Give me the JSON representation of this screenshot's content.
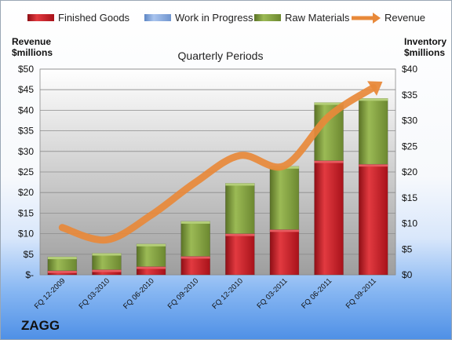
{
  "brand": "ZAGG",
  "chart_data": {
    "type": "bar",
    "stacked": true,
    "title": "Quarterly Periods",
    "categories": [
      "FQ 12-2009",
      "FQ 03-2010",
      "FQ 06-2010",
      "FQ 09-2010",
      "FQ 12-2010",
      "FQ 03-2011",
      "FQ 06-2011",
      "FQ 09-2011"
    ],
    "y_left": {
      "label_line1": "Revenue",
      "label_line2": "$millions",
      "ylim": [
        0,
        50
      ],
      "ticks": [
        "$-",
        "$5",
        "$10",
        "$15",
        "$20",
        "$25",
        "$30",
        "$35",
        "$40",
        "$45",
        "$50"
      ]
    },
    "y_right": {
      "label_line1": "Inventory",
      "label_line2": "$millions",
      "ylim": [
        0,
        40
      ],
      "ticks": [
        "$0",
        "$5",
        "$10",
        "$15",
        "$20",
        "$25",
        "$30",
        "$35",
        "$40"
      ]
    },
    "series": [
      {
        "name": "Finished Goods",
        "axis": "right",
        "type": "bar",
        "color": "#c0161f",
        "values": [
          0.8,
          1.0,
          1.6,
          3.6,
          8.0,
          8.8,
          22.2,
          21.5
        ]
      },
      {
        "name": "Work in Progress",
        "axis": "right",
        "type": "bar",
        "color": "#7fa3d9",
        "values": [
          0,
          0,
          0,
          0,
          0,
          0,
          0,
          0
        ]
      },
      {
        "name": "Raw Materials",
        "axis": "right",
        "type": "bar",
        "color": "#7d9a3a",
        "values": [
          2.7,
          3.2,
          4.4,
          6.8,
          9.8,
          12.3,
          11.3,
          12.8
        ]
      },
      {
        "name": "Revenue",
        "axis": "left",
        "type": "line",
        "color": "#e8893a",
        "values": [
          11.5,
          8.5,
          14.5,
          22.5,
          29.0,
          26.5,
          38.5,
          45.5
        ]
      }
    ],
    "grid": true,
    "legend_position": "top"
  }
}
